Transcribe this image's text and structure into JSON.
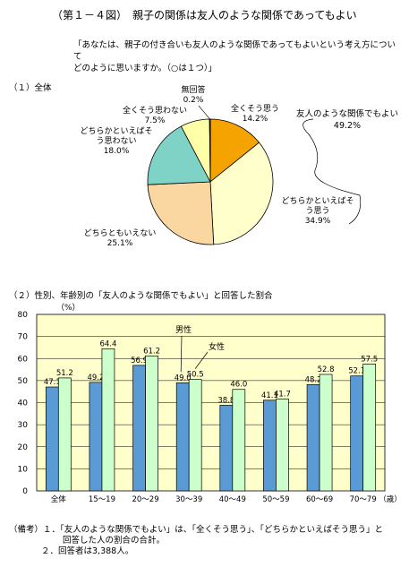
{
  "figure_title": "（第１－４図）　親子の関係は友人のような関係であってもよい",
  "question_lines": [
    "「あなたは、親子の付き合いも友人のような関係であってもよいという考え方について",
    "どのように思いますか。（○は１つ）」"
  ],
  "section1_label": "（１）全体",
  "section2_label": "（２）性別、年齢別の「友人のような関係でもよい」と回答した割合",
  "pie_group_label": [
    "友人のような関係でもよい",
    "49.2%"
  ],
  "notes": [
    "（備考）１．「友人のような関係でもよい」は、「全くそう思う」、「どちらかといえばそう思う」と",
    "回答した人の割合の合計。",
    "２．回答者は3,388人。"
  ],
  "colors": {
    "male_bar": "#5b9bd5",
    "female_bar": "#ccffcc",
    "plot_bg": "#ffffcc",
    "pie_strongly_agree": "#f4a300",
    "pie_somewhat_agree": "#ffffcc",
    "pie_neither": "#fad7a0",
    "pie_somewhat_disagree": "#7fd3c6",
    "pie_strongly_disagree": "#ffffa8",
    "pie_no_answer": "#ffffff"
  },
  "chart_data": [
    {
      "type": "pie",
      "slices": [
        {
          "label": [
            "全くそう思う"
          ],
          "value": 14.2,
          "value_label": "14.2%"
        },
        {
          "label": [
            "どちらかといえばそ",
            "う思う"
          ],
          "value": 34.9,
          "value_label": "34.9%"
        },
        {
          "label": [
            "どちらともいえない"
          ],
          "value": 25.1,
          "value_label": "25.1%"
        },
        {
          "label": [
            "どちらかといえばそ",
            "う思わない"
          ],
          "value": 18.0,
          "value_label": "18.0%"
        },
        {
          "label": [
            "全くそう思わない"
          ],
          "value": 7.5,
          "value_label": "7.5%"
        },
        {
          "label": [
            "無回答"
          ],
          "value": 0.2,
          "value_label": "0.2%"
        }
      ]
    },
    {
      "type": "bar",
      "categories": [
        "全体",
        "15～19",
        "20～29",
        "30～39",
        "40～49",
        "50～59",
        "60～69",
        "70～79"
      ],
      "x_unit": "（歳）",
      "y_unit": "（%）",
      "ylim": [
        0,
        80
      ],
      "yticks": [
        0,
        10,
        20,
        30,
        40,
        50,
        60,
        70,
        80
      ],
      "grid": true,
      "series": [
        {
          "name": "男性",
          "values": [
            47.1,
            49.2,
            56.9,
            49.0,
            38.8,
            41.1,
            48.2,
            52.1
          ]
        },
        {
          "name": "女性",
          "values": [
            51.2,
            64.4,
            61.2,
            50.5,
            46.0,
            41.7,
            52.8,
            57.5
          ]
        }
      ]
    }
  ]
}
